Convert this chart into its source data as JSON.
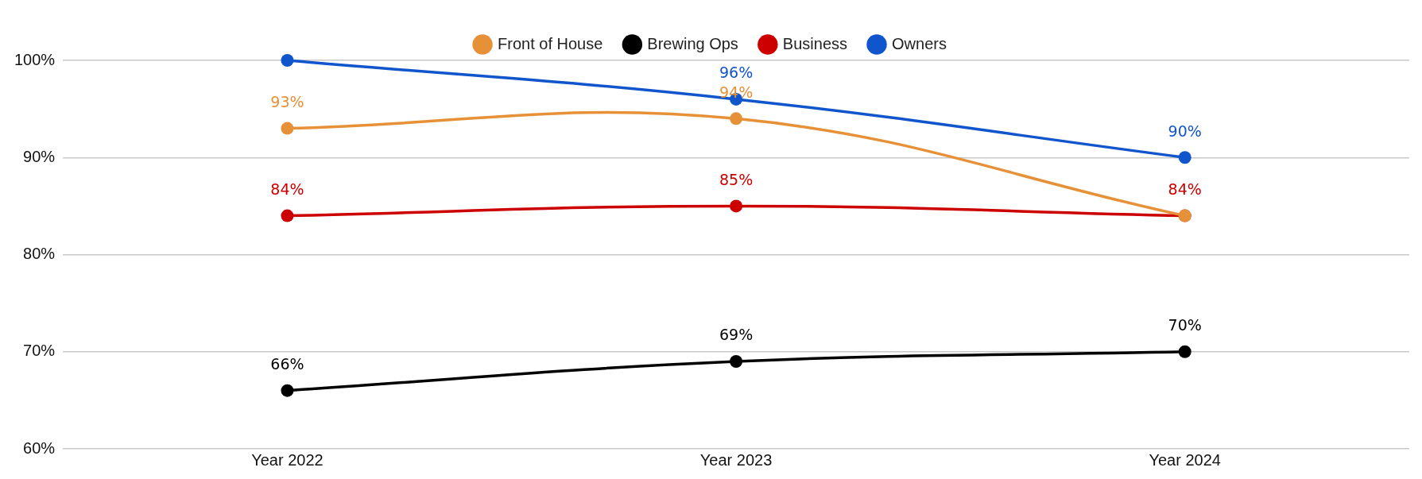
{
  "chart_data": {
    "type": "line",
    "categories": [
      "Year 2022",
      "Year 2023",
      "Year 2024"
    ],
    "series": [
      {
        "name": "Front of House",
        "color": "#e69138",
        "values": [
          93,
          94,
          84
        ],
        "value_labels": [
          "93%",
          "94%",
          null
        ]
      },
      {
        "name": "Brewing Ops",
        "color": "#000000",
        "values": [
          66,
          69,
          70
        ],
        "value_labels": [
          "66%",
          "69%",
          "70%"
        ]
      },
      {
        "name": "Business",
        "color": "#cc0000",
        "values": [
          84,
          85,
          84
        ],
        "value_labels": [
          "84%",
          "85%",
          "84%"
        ]
      },
      {
        "name": "Owners",
        "color": "#1155cc",
        "values": [
          100,
          96,
          90
        ],
        "value_labels": [
          null,
          "96%",
          "90%"
        ]
      }
    ],
    "ylim": [
      60,
      100
    ],
    "yticks": [
      {
        "value": 60,
        "label": "60%"
      },
      {
        "value": 70,
        "label": "70%"
      },
      {
        "value": 80,
        "label": "80%"
      },
      {
        "value": 90,
        "label": "90%"
      },
      {
        "value": 100,
        "label": "100%"
      }
    ],
    "grid": "y",
    "legend": "top",
    "marker": "circle",
    "line_style": "solid"
  }
}
